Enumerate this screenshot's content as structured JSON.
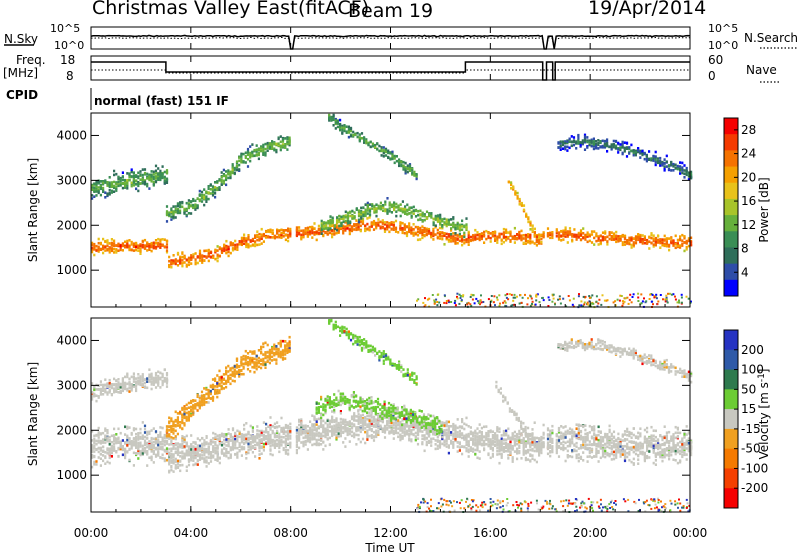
{
  "header": {
    "station": "Christmas Valley East",
    "processing": "(fitACF)",
    "beam": "Beam 19",
    "date": "19/Apr/2014"
  },
  "panels": {
    "nsky_label": "N.Sky",
    "nsearch_label": "N.Search",
    "noise_ticks": [
      "10^5",
      "10^0"
    ],
    "freq_label": "Freq.",
    "freq_unit": "[MHz]",
    "freq_ticks": [
      "18",
      "8"
    ],
    "nave_label": "Nave",
    "nave_ticks": [
      "60",
      "0"
    ],
    "cpid_label": "CPID",
    "cpid_value": "normal (fast) 151 IF"
  },
  "colors": {
    "power": [
      "#0000ff",
      "#2e4da8",
      "#2f6e5a",
      "#3a8e55",
      "#66b03c",
      "#a8c42a",
      "#e8c21a",
      "#f5a000",
      "#f57200",
      "#f53a00",
      "#f50000"
    ],
    "velocity": [
      "#2633c2",
      "#2f5aa8",
      "#2e7a4e",
      "#6ccc34",
      "#c8c8c0",
      "#f0a020",
      "#f57a00",
      "#f54000",
      "#f50000"
    ]
  },
  "chart_data": [
    {
      "type": "heatmap",
      "name": "power",
      "xlabel": "Time UT",
      "ylabel": "Slant Range [km]",
      "x_ticks": [
        "00:00",
        "04:00",
        "08:00",
        "12:00",
        "16:00",
        "20:00",
        "00:00"
      ],
      "x_hours": [
        0,
        4,
        8,
        12,
        16,
        20,
        24
      ],
      "y_ticks": [
        1000,
        2000,
        3000,
        4000
      ],
      "ylim": [
        180,
        4500
      ],
      "colorbar_label": "Power [dB]",
      "colorbar_ticks": [
        4,
        8,
        12,
        16,
        20,
        24,
        28
      ],
      "colorbar_range": [
        0,
        30
      ],
      "bands": [
        {
          "hours": [
            0,
            1,
            2,
            3,
            3.01,
            4,
            5,
            6,
            7,
            8,
            9,
            10,
            11,
            12,
            13,
            14,
            15,
            15.01,
            16,
            17,
            18,
            18.01,
            19,
            20,
            21,
            22,
            23,
            24
          ],
          "range": [
            1530,
            1560,
            1560,
            1570,
            1200,
            1280,
            1400,
            1650,
            1780,
            1850,
            1870,
            1950,
            2030,
            2000,
            1900,
            1820,
            1700,
            1750,
            1800,
            1780,
            1700,
            1820,
            1820,
            1750,
            1720,
            1680,
            1650,
            1650
          ],
          "width": 220,
          "power": 25
        },
        {
          "hours": [
            3,
            4,
            5,
            6,
            7,
            8
          ],
          "range": [
            2300,
            2450,
            2900,
            3500,
            3750,
            3900
          ],
          "width": 250,
          "power": 13
        },
        {
          "hours": [
            9.2,
            10,
            11,
            12,
            13,
            14,
            15
          ],
          "range": [
            2000,
            2150,
            2350,
            2450,
            2300,
            2100,
            1950
          ],
          "width": 250,
          "power": 14
        },
        {
          "hours": [
            9.5,
            10,
            11,
            12,
            13
          ],
          "range": [
            4450,
            4200,
            3900,
            3550,
            3150
          ],
          "width": 180,
          "power": 12
        },
        {
          "hours": [
            16.7,
            17.2,
            17.6,
            18
          ],
          "range": [
            3000,
            2500,
            2000,
            1600
          ],
          "width": 140,
          "power": 22
        },
        {
          "hours": [
            18.6,
            19.5,
            20.5,
            21.5,
            22.5,
            23.5,
            24
          ],
          "range": [
            3800,
            3900,
            3850,
            3700,
            3500,
            3300,
            3150
          ],
          "width": 200,
          "power": 8
        },
        {
          "hours": [
            0,
            1,
            2,
            3
          ],
          "range": [
            2850,
            2950,
            3050,
            3150
          ],
          "width": 320,
          "power": 12
        }
      ]
    },
    {
      "type": "heatmap",
      "name": "velocity",
      "xlabel": "Time UT",
      "ylabel": "Slant Range [km]",
      "x_ticks": [
        "00:00",
        "04:00",
        "08:00",
        "12:00",
        "16:00",
        "20:00",
        "00:00"
      ],
      "x_hours": [
        0,
        4,
        8,
        12,
        16,
        20,
        24
      ],
      "y_ticks": [
        1000,
        2000,
        3000,
        4000
      ],
      "ylim": [
        180,
        4500
      ],
      "colorbar_label": "Velocity [m s",
      "colorbar_label_sup": "-1",
      "colorbar_ticks": [
        200,
        100,
        50,
        15,
        -15,
        -50,
        -100,
        -200
      ],
      "colorbar_range": [
        -250,
        250
      ],
      "bands": [
        {
          "hours": [
            0,
            1,
            2,
            3,
            3.01,
            4,
            5,
            6,
            7,
            8,
            9,
            10,
            11,
            12,
            13,
            14,
            15,
            15.01,
            16,
            17,
            18,
            18.01,
            19,
            20,
            21,
            22,
            23,
            24
          ],
          "range": [
            1650,
            1680,
            1700,
            1720,
            1450,
            1550,
            1650,
            1800,
            1850,
            1900,
            2000,
            2100,
            2150,
            2150,
            2050,
            1950,
            1850,
            1800,
            1800,
            1750,
            1700,
            1780,
            1780,
            1750,
            1720,
            1700,
            1680,
            1680
          ],
          "width": 520,
          "vel": 0
        },
        {
          "hours": [
            3,
            4,
            5,
            6,
            7,
            8
          ],
          "range": [
            2000,
            2500,
            3000,
            3500,
            3700,
            3900
          ],
          "width": 350,
          "vel": -60
        },
        {
          "hours": [
            9,
            10,
            11,
            12,
            13,
            14
          ],
          "range": [
            2500,
            2700,
            2600,
            2450,
            2300,
            2100
          ],
          "width": 300,
          "vel": 40
        },
        {
          "hours": [
            9.5,
            10,
            11,
            12,
            13
          ],
          "range": [
            4450,
            4250,
            3900,
            3550,
            3150
          ],
          "width": 180,
          "vel": 40
        },
        {
          "hours": [
            16.2,
            16.8,
            17.4,
            18
          ],
          "range": [
            3000,
            2500,
            2000,
            1600
          ],
          "width": 150,
          "vel": 0
        },
        {
          "hours": [
            0,
            1,
            2,
            3
          ],
          "range": [
            2900,
            3000,
            3100,
            3200
          ],
          "width": 300,
          "vel": 0
        },
        {
          "hours": [
            18.6,
            19.5,
            20.5,
            21.5,
            22.5,
            23.5,
            24
          ],
          "range": [
            3900,
            3950,
            3900,
            3750,
            3550,
            3350,
            3200
          ],
          "width": 180,
          "vel": -10
        }
      ]
    }
  ]
}
